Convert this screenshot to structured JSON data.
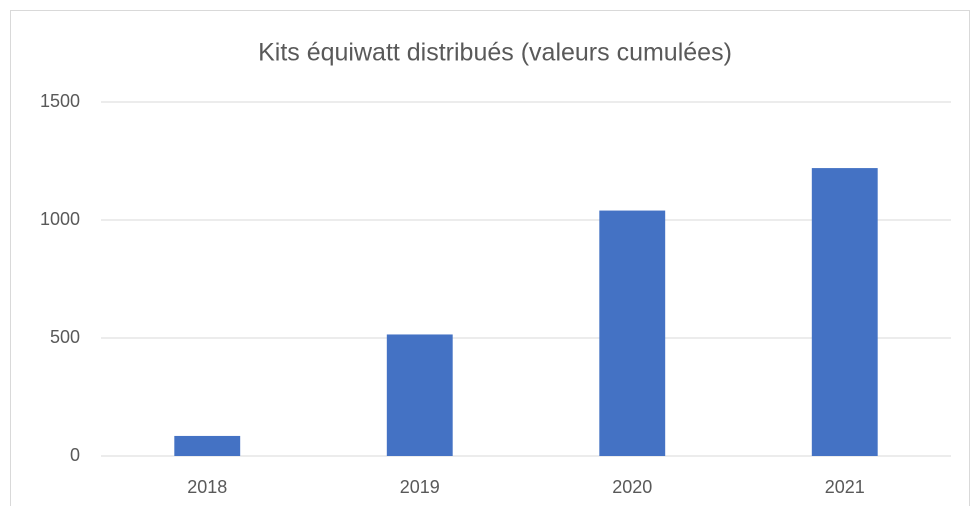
{
  "chart_data": {
    "type": "bar",
    "title": "Kits équiwatt distribués (valeurs cumulées)",
    "categories": [
      "2018",
      "2019",
      "2020",
      "2021"
    ],
    "values": [
      85,
      515,
      1040,
      1220
    ],
    "color": "#4472c4",
    "ylim": [
      0,
      1500
    ],
    "yticks": [
      0,
      500,
      1000,
      1500
    ],
    "grid": true
  }
}
